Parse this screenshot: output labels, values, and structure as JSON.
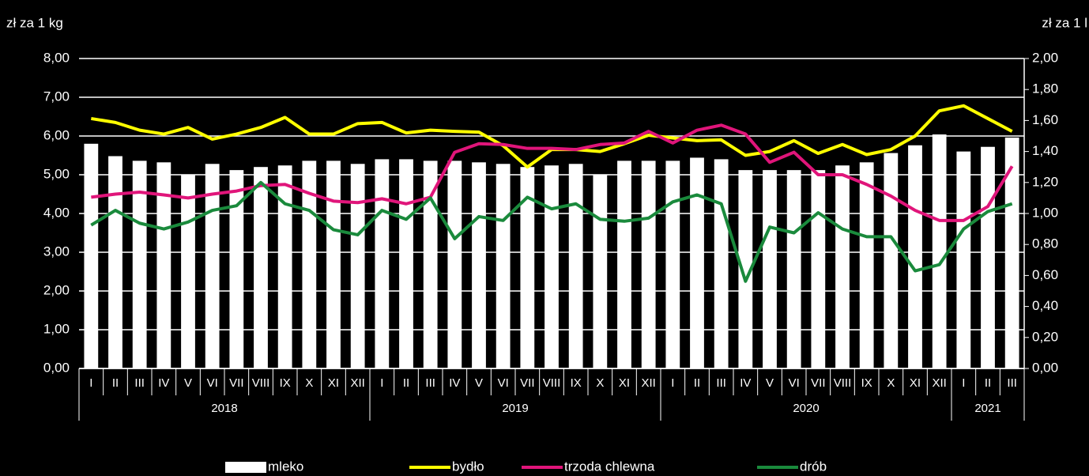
{
  "chart_data": {
    "type": "bar-line",
    "y_label": "zł za 1 kg",
    "y2_label": "zł za 1 l",
    "groups": [
      {
        "name": "2018",
        "categories": [
          "I",
          "II",
          "III",
          "IV",
          "V",
          "VI",
          "VII",
          "VIII",
          "IX",
          "X",
          "XI",
          "XII"
        ]
      },
      {
        "name": "2019",
        "categories": [
          "I",
          "II",
          "III",
          "IV",
          "V",
          "VI",
          "VII",
          "VIII",
          "IX",
          "X",
          "XI",
          "XII"
        ]
      },
      {
        "name": "2020",
        "categories": [
          "I",
          "II",
          "III",
          "IV",
          "V",
          "VI",
          "VII",
          "VIII",
          "IX",
          "X",
          "XI",
          "XII"
        ]
      },
      {
        "name": "2021",
        "categories": [
          "I",
          "II",
          "III"
        ]
      }
    ],
    "ylim": [
      0,
      8
    ],
    "yticks": [
      {
        "value": 0,
        "label": "0,00"
      },
      {
        "value": 1,
        "label": "1,00"
      },
      {
        "value": 2,
        "label": "2,00"
      },
      {
        "value": 3,
        "label": "3,00"
      },
      {
        "value": 4,
        "label": "4,00"
      },
      {
        "value": 5,
        "label": "5,00"
      },
      {
        "value": 6,
        "label": "6,00"
      },
      {
        "value": 7,
        "label": "7,00"
      },
      {
        "value": 8,
        "label": "8,00"
      }
    ],
    "y2lim": [
      0,
      2
    ],
    "y2ticks": [
      {
        "value": 0,
        "label": "0,00"
      },
      {
        "value": 0.2,
        "label": "0,20"
      },
      {
        "value": 0.4,
        "label": "0,40"
      },
      {
        "value": 0.6,
        "label": "0,60"
      },
      {
        "value": 0.8,
        "label": "0,80"
      },
      {
        "value": 1,
        "label": "1,00"
      },
      {
        "value": 1.2,
        "label": "1,20"
      },
      {
        "value": 1.4,
        "label": "1,40"
      },
      {
        "value": 1.6,
        "label": "1,60"
      },
      {
        "value": 1.8,
        "label": "1,80"
      },
      {
        "value": 2,
        "label": "2,00"
      }
    ],
    "grid": true,
    "series": [
      {
        "name": "mleko",
        "kind": "bar",
        "axis": "y2",
        "color": "#ffffff",
        "values": [
          1.45,
          1.37,
          1.34,
          1.33,
          1.25,
          1.32,
          1.28,
          1.3,
          1.31,
          1.34,
          1.34,
          1.32,
          1.35,
          1.35,
          1.34,
          1.34,
          1.33,
          1.32,
          1.3,
          1.31,
          1.32,
          1.25,
          1.34,
          1.34,
          1.34,
          1.36,
          1.35,
          1.28,
          1.28,
          1.28,
          1.28,
          1.31,
          1.33,
          1.39,
          1.44,
          1.51,
          1.4,
          1.43,
          1.49
        ]
      },
      {
        "name": "bydło",
        "kind": "line",
        "color": "#ffff00",
        "values": [
          6.45,
          6.35,
          6.15,
          6.05,
          6.22,
          5.92,
          6.05,
          6.22,
          6.48,
          6.05,
          6.05,
          6.32,
          6.35,
          6.08,
          6.15,
          6.12,
          6.1,
          5.75,
          5.2,
          5.65,
          5.65,
          5.6,
          5.8,
          6.02,
          5.95,
          5.88,
          5.9,
          5.5,
          5.6,
          5.88,
          5.55,
          5.78,
          5.52,
          5.65,
          6.0,
          6.65,
          6.78,
          6.45,
          6.12
        ]
      },
      {
        "name": "trzoda chlewna",
        "kind": "line",
        "color": "#e0157a",
        "values": [
          4.42,
          4.5,
          4.55,
          4.48,
          4.4,
          4.5,
          4.58,
          4.72,
          4.75,
          4.52,
          4.32,
          4.28,
          4.38,
          4.25,
          4.42,
          5.58,
          5.8,
          5.78,
          5.68,
          5.68,
          5.65,
          5.78,
          5.82,
          6.12,
          5.82,
          6.15,
          6.28,
          6.05,
          5.32,
          5.58,
          5.0,
          5.0,
          4.75,
          4.45,
          4.08,
          3.82,
          3.82,
          4.18,
          5.22
        ]
      },
      {
        "name": "drób",
        "kind": "line",
        "color": "#1a8a3c",
        "values": [
          3.7,
          4.08,
          3.75,
          3.6,
          3.78,
          4.08,
          4.2,
          4.8,
          4.25,
          4.08,
          3.58,
          3.45,
          4.08,
          3.85,
          4.4,
          3.35,
          3.92,
          3.82,
          4.42,
          4.12,
          4.25,
          3.85,
          3.8,
          3.88,
          4.3,
          4.48,
          4.25,
          2.25,
          3.65,
          3.5,
          4.02,
          3.6,
          3.4,
          3.4,
          2.52,
          2.68,
          3.6,
          4.05,
          4.25
        ]
      }
    ]
  }
}
